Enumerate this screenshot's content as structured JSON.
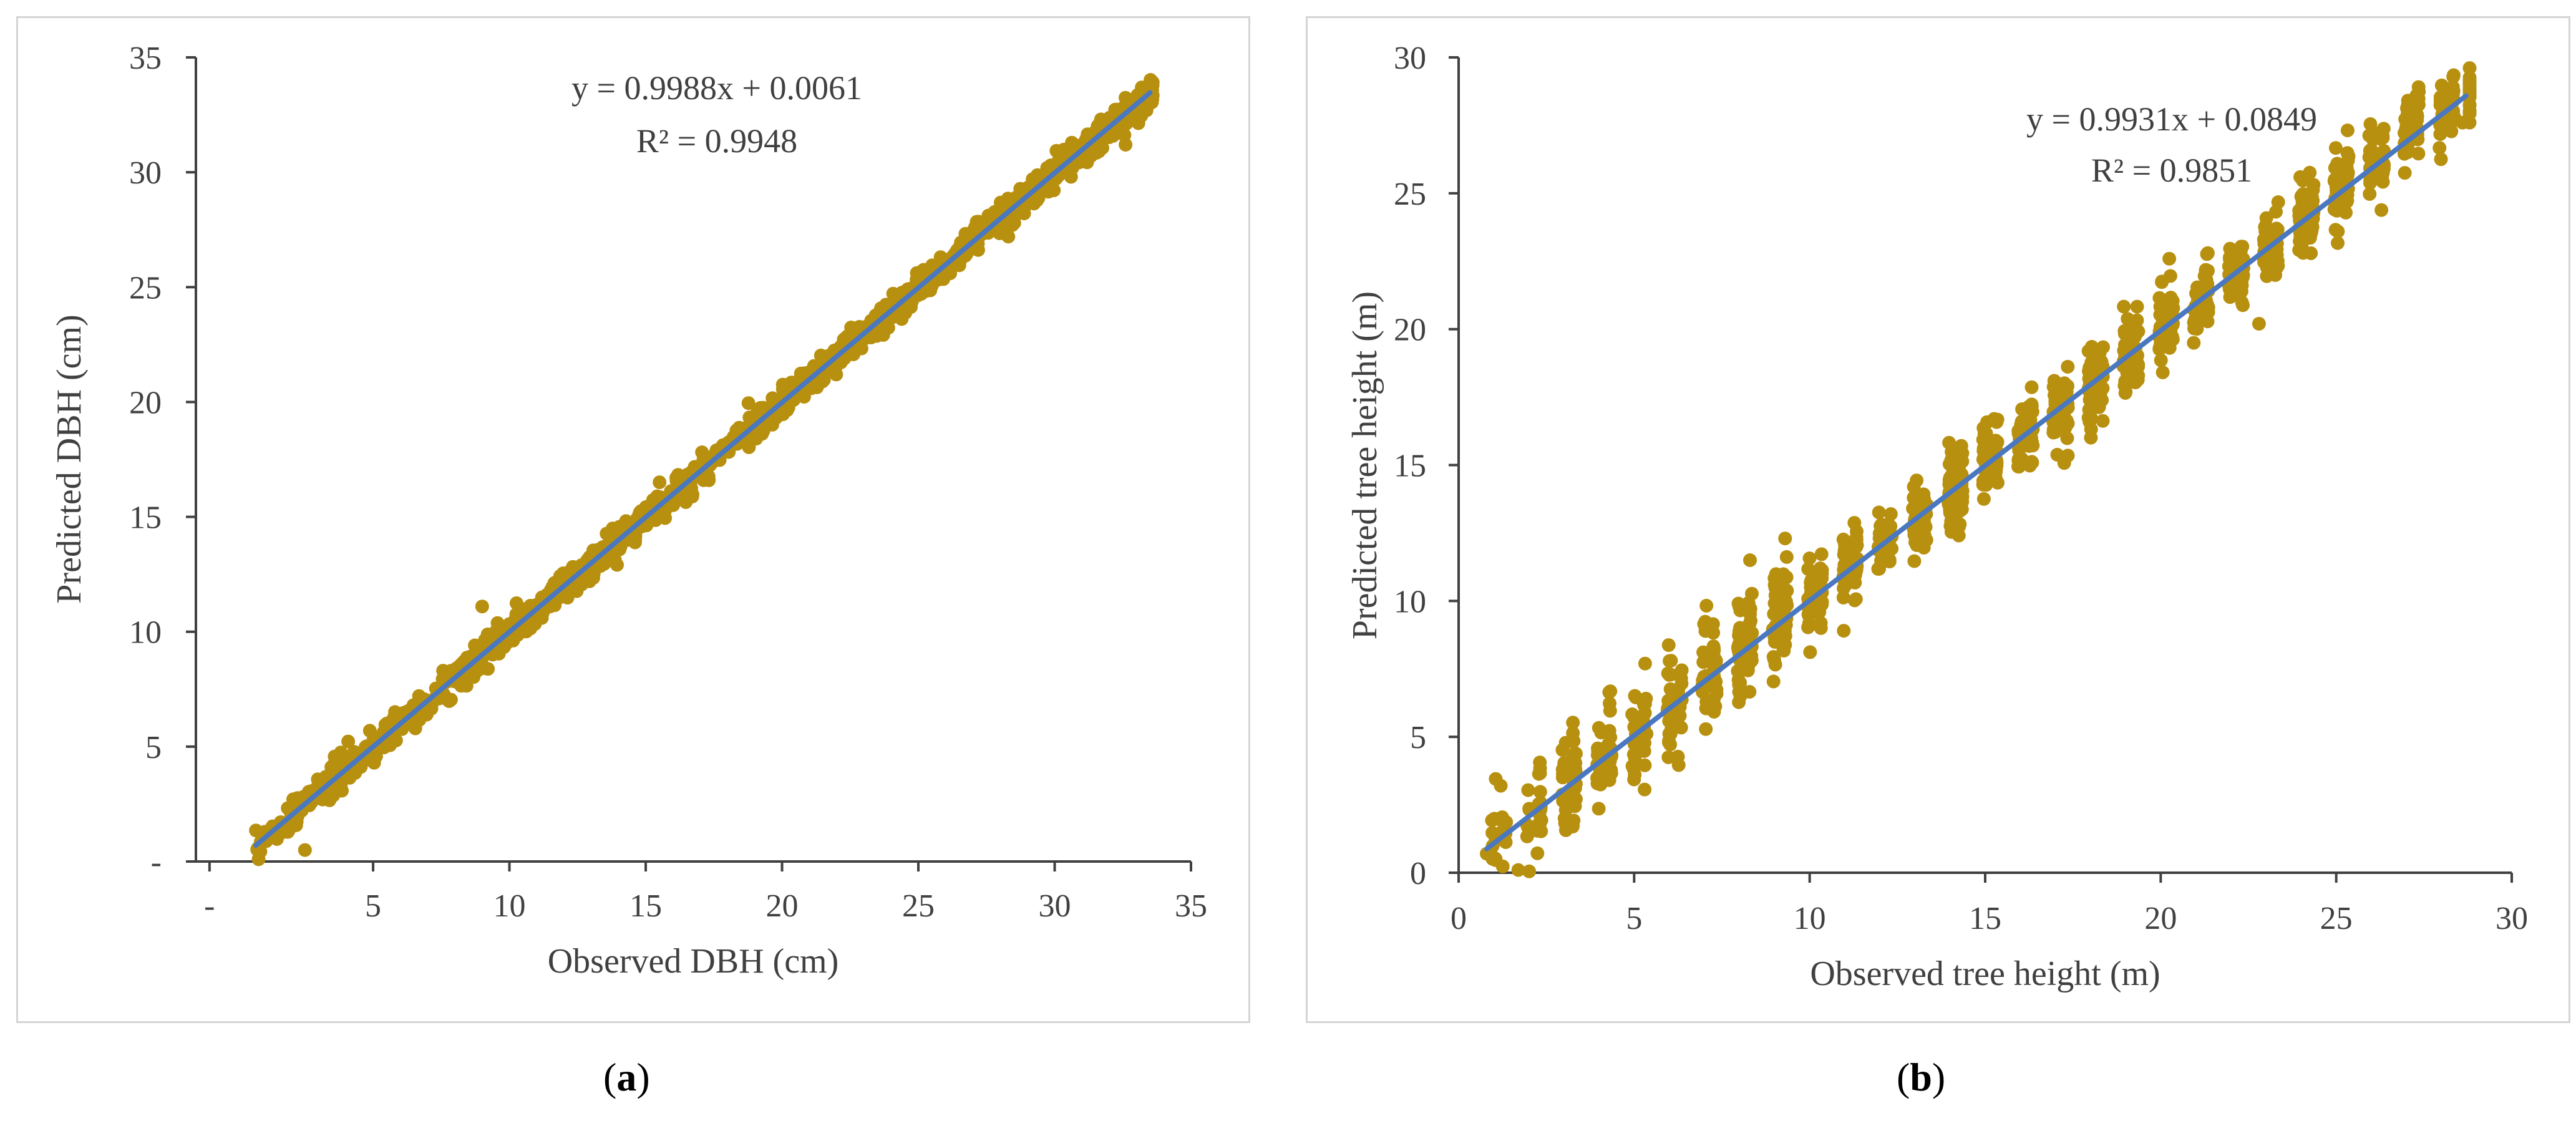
{
  "colors": {
    "points": "#b8900f",
    "trendline": "#4a78c0",
    "axis": "#404040",
    "border": "#d4d4d4"
  },
  "chart_data": [
    {
      "type": "scatter",
      "panel": "a",
      "xlabel": "Observed DBH (cm)",
      "ylabel": "Predicted DBH (cm)",
      "xlim": [
        -1.5,
        35
      ],
      "ylim": [
        0,
        35
      ],
      "x_ticks": [
        {
          "value": -1,
          "label": "-"
        },
        {
          "value": 5,
          "label": "5"
        },
        {
          "value": 10,
          "label": "10"
        },
        {
          "value": 15,
          "label": "15"
        },
        {
          "value": 20,
          "label": "20"
        },
        {
          "value": 25,
          "label": "25"
        },
        {
          "value": 30,
          "label": "30"
        },
        {
          "value": 35,
          "label": "35"
        }
      ],
      "y_ticks": [
        {
          "value": 0,
          "label": "-"
        },
        {
          "value": 5,
          "label": "5"
        },
        {
          "value": 10,
          "label": "10"
        },
        {
          "value": 15,
          "label": "15"
        },
        {
          "value": 20,
          "label": "20"
        },
        {
          "value": 25,
          "label": "25"
        },
        {
          "value": 30,
          "label": "30"
        },
        {
          "value": 35,
          "label": "35"
        }
      ],
      "equation": "y = 0.9988x + 0.0061",
      "r_squared": "R² = 0.9948",
      "trendline": {
        "slope": 0.9988,
        "intercept": 0.0061,
        "x_range": [
          0.7,
          33.5
        ]
      },
      "sample_points": {
        "description": "dense cloud of several thousand observations tightly around the 1:1 line",
        "count": 1600,
        "x_range": [
          0.7,
          33.6
        ],
        "spread_sd": 0.32,
        "seed": 11
      },
      "notable_points": [
        [
          0.8,
          0.1
        ],
        [
          2.5,
          0.5
        ],
        [
          9.0,
          11.1
        ],
        [
          32.6,
          31.2
        ],
        [
          30.6,
          29.8
        ],
        [
          28.3,
          27.2
        ]
      ]
    },
    {
      "type": "scatter",
      "panel": "b",
      "xlabel": "Observed tree height (m)",
      "ylabel": "Predicted tree height (m)",
      "xlim": [
        0,
        30
      ],
      "ylim": [
        0,
        30
      ],
      "x_ticks": [
        {
          "value": 0,
          "label": "0"
        },
        {
          "value": 5,
          "label": "5"
        },
        {
          "value": 10,
          "label": "10"
        },
        {
          "value": 15,
          "label": "15"
        },
        {
          "value": 20,
          "label": "20"
        },
        {
          "value": 25,
          "label": "25"
        },
        {
          "value": 30,
          "label": "30"
        }
      ],
      "y_ticks": [
        {
          "value": 0,
          "label": "0"
        },
        {
          "value": 5,
          "label": "5"
        },
        {
          "value": 10,
          "label": "10"
        },
        {
          "value": 15,
          "label": "15"
        },
        {
          "value": 20,
          "label": "20"
        },
        {
          "value": 25,
          "label": "25"
        },
        {
          "value": 30,
          "label": "30"
        }
      ],
      "equation": "y = 0.9931x + 0.0849",
      "r_squared": "R² = 0.9851",
      "trendline": {
        "slope": 0.9931,
        "intercept": 0.0849,
        "x_range": [
          0.8,
          28.7
        ]
      },
      "sample_points": {
        "description": "observations clustered in vertical bands at integer heights around the 1:1 line",
        "count": 1300,
        "x_range": [
          0.8,
          28.8
        ],
        "spread_sd": 0.75,
        "banded": true,
        "seed": 23
      },
      "notable_points": [
        [
          0.8,
          0.7
        ],
        [
          1.2,
          3.2
        ],
        [
          1.7,
          0.1
        ],
        [
          9.3,
          12.3
        ],
        [
          8.3,
          11.5
        ],
        [
          22.8,
          20.2
        ],
        [
          28.6,
          27.6
        ],
        [
          28.8,
          27.6
        ]
      ]
    }
  ],
  "captions": [
    {
      "open": "(",
      "letter": "a",
      "close": ")"
    },
    {
      "open": "(",
      "letter": "b",
      "close": ")"
    }
  ]
}
